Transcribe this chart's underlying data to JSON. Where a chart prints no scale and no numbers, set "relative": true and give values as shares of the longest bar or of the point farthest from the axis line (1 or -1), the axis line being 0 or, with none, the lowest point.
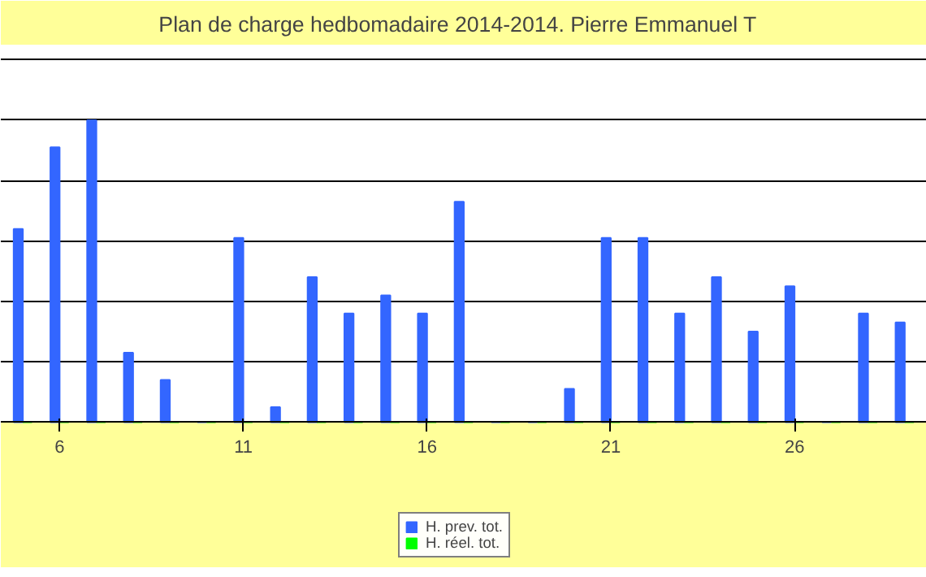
{
  "chart_data": {
    "type": "bar",
    "title": "Plan de charge hedbomadaire 2014-2014.  Pierre  Emmanuel T",
    "relative": true,
    "grid": "y",
    "legend": "bottom",
    "categories": [
      null,
      "6",
      null,
      null,
      null,
      null,
      "11",
      null,
      null,
      null,
      null,
      "16",
      null,
      null,
      null,
      null,
      "21",
      null,
      null,
      null,
      null,
      "26",
      null,
      null,
      null
    ],
    "series": [
      {
        "name": "H. prev. tot.",
        "color": "#3366ff",
        "values": [
          0.64,
          0.91,
          1.0,
          0.23,
          0.14,
          0,
          0.61,
          0.05,
          0.48,
          0.36,
          0.42,
          0.36,
          0.73,
          0,
          0,
          0.11,
          0.61,
          0.61,
          0.36,
          0.48,
          0.3,
          0.45,
          0,
          0.36,
          0.33
        ]
      },
      {
        "name": "H. réel. tot.",
        "color": "#00ff00",
        "values": [
          0,
          0,
          0,
          0,
          0,
          0,
          0,
          0,
          0,
          0,
          0,
          0,
          0,
          0,
          0,
          0,
          0,
          0,
          0,
          0,
          0,
          0,
          0,
          0,
          0
        ]
      }
    ]
  }
}
